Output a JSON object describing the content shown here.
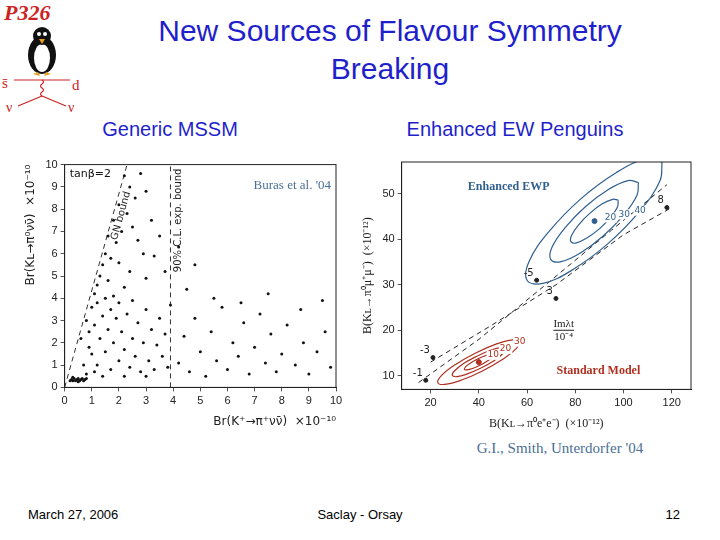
{
  "header": {
    "title": "New Sources of Flavour Symmetry Breaking"
  },
  "logo": {
    "title": "P326",
    "labels": [
      "s̄",
      "d",
      "ν",
      "ν"
    ]
  },
  "footer": {
    "date": "March 27, 2006",
    "venue": "Saclay - Orsay",
    "page": 12
  },
  "chart_data": [
    {
      "type": "scatter",
      "title": "Generic MSSM",
      "x_label": "Br(K⁺→π⁺νν̄)  ×10⁻¹⁰",
      "y_label": "Br(Kʟ→π⁰νν̄)  ×10⁻¹⁰",
      "xlim": [
        0,
        10
      ],
      "xticks": [
        0,
        1,
        2,
        3,
        4,
        5,
        6,
        7,
        8,
        9,
        10
      ],
      "ylim": [
        0,
        10
      ],
      "yticks": [
        0,
        1,
        2,
        3,
        4,
        5,
        6,
        7,
        8,
        9,
        10
      ],
      "grid": false,
      "color": "#111111",
      "marker": "circle",
      "annotations": [
        "tanβ=2"
      ],
      "source": "Buras et al. '04",
      "bounds": [
        {
          "name": "GN bound",
          "x": [
            0,
            2.3
          ],
          "y": [
            0,
            10
          ],
          "line_style": "dashed"
        },
        {
          "name": "90% C.L. exp. bound",
          "x": [
            3.9,
            3.9
          ],
          "y": [
            0,
            10
          ],
          "line_style": "dashed"
        }
      ],
      "x": [
        0.2,
        0.25,
        0.3,
        0.35,
        0.4,
        0.45,
        0.5,
        0.55,
        0.6,
        0.65,
        0.7,
        0.75,
        0.3,
        0.5,
        0.8,
        2.2,
        2.0,
        1.8,
        2.4,
        2.6,
        1.6,
        2.3,
        2.8,
        1.9,
        1.5,
        2.1,
        3.0,
        2.5,
        1.4,
        1.7,
        3.2,
        2.7,
        1.3,
        2.0,
        3.5,
        2.9,
        1.2,
        1.6,
        2.4,
        3.3,
        4.2,
        1.1,
        2.2,
        1.8,
        3.0,
        3.7,
        4.8,
        0.6,
        0.8,
        0.9,
        1.0,
        1.0,
        1.1,
        1.2,
        1.2,
        1.3,
        1.4,
        1.5,
        1.5,
        1.6,
        1.7,
        1.7,
        1.8,
        1.9,
        2.0,
        2.0,
        2.1,
        2.2,
        2.3,
        2.4,
        2.5,
        2.5,
        2.6,
        2.7,
        2.8,
        2.9,
        3.0,
        3.1,
        3.2,
        3.3,
        3.4,
        3.5,
        3.6,
        3.7,
        3.8,
        3.9,
        0.7,
        0.9,
        1.1,
        1.4,
        2.2,
        3.0,
        0.8,
        4.2,
        4.4,
        4.6,
        4.8,
        5.0,
        5.2,
        5.4,
        5.6,
        5.8,
        6.0,
        6.2,
        6.4,
        6.6,
        6.8,
        7.0,
        7.2,
        7.4,
        7.6,
        7.8,
        8.0,
        8.2,
        8.5,
        8.8,
        9.0,
        9.3,
        9.6,
        9.8,
        4.5,
        5.5,
        6.5,
        7.5,
        8.7,
        9.5
      ],
      "values": [
        0.3,
        0.35,
        0.3,
        0.4,
        0.3,
        0.35,
        0.4,
        0.3,
        0.35,
        0.4,
        0.3,
        0.35,
        0.45,
        0.25,
        0.4,
        9.5,
        8.2,
        7.5,
        9.0,
        8.5,
        6.8,
        7.8,
        9.6,
        6.5,
        6.0,
        7.0,
        8.8,
        7.2,
        5.5,
        5.8,
        7.5,
        6.6,
        5.0,
        5.6,
        6.8,
        6.0,
        4.6,
        4.8,
        5.2,
        5.9,
        6.3,
        4.2,
        4.5,
        4.1,
        4.9,
        5.2,
        5.5,
        2.2,
        3.0,
        2.5,
        3.6,
        1.5,
        2.8,
        3.8,
        1.0,
        2.2,
        3.2,
        1.6,
        4.0,
        2.6,
        3.5,
        0.8,
        2.0,
        3.1,
        1.2,
        3.8,
        2.5,
        1.7,
        3.3,
        0.9,
        2.2,
        3.9,
        1.4,
        2.9,
        0.7,
        2.0,
        3.5,
        1.2,
        2.6,
        0.8,
        1.9,
        3.1,
        1.4,
        2.4,
        0.9,
        3.7,
        1.0,
        1.8,
        0.7,
        0.5,
        0.5,
        0.5,
        0.6,
        1.1,
        2.3,
        0.7,
        3.1,
        1.6,
        0.5,
        2.5,
        1.2,
        3.6,
        0.8,
        2.0,
        1.4,
        2.9,
        0.6,
        1.8,
        3.3,
        1.1,
        2.4,
        0.7,
        1.5,
        2.8,
        1.0,
        2.0,
        0.6,
        1.6,
        2.5,
        0.9,
        4.4,
        4.0,
        3.8,
        4.2,
        3.5,
        3.9
      ]
    },
    {
      "type": "contour",
      "title": "Enhanced EW Penguins",
      "x_label": "B(Kʟ→π⁰e⁺e⁻)  (×10⁻¹²)",
      "y_label": "B(Kʟ→π⁰μ⁺μ⁻)  (×10⁻¹²)",
      "xlim": [
        8,
        128
      ],
      "xticks": [
        20,
        40,
        60,
        80,
        100,
        120
      ],
      "ylim": [
        7,
        57
      ],
      "yticks": [
        10,
        20,
        30,
        40,
        50
      ],
      "grid": false,
      "contours": [
        {
          "name": "Enhanced EWP",
          "color": "#2f5f8f",
          "center": {
            "x": 88,
            "y": 44
          },
          "levels": [
            {
              "label": "20",
              "label_x": 94.6,
              "label_y": 44.8,
              "x": [
                97.8,
                95.5,
                91.2,
                86.0,
                81.4,
                78.5,
                78.2,
                80.5,
                84.8,
                90.0,
                94.6,
                97.5
              ],
              "y": [
                48.6,
                48.8,
                47.8,
                45.7,
                43.2,
                40.9,
                39.5,
                39.2,
                40.3,
                42.3,
                44.8,
                47.1
              ]
            },
            {
              "label": "30",
              "label_x": 100.3,
              "label_y": 45.5,
              "x": [
                106.2,
                101.9,
                93.9,
                84.3,
                75.7,
                70.4,
                69.8,
                74.1,
                82.1,
                91.7,
                100.3,
                105.6
              ],
              "y": [
                52.5,
                52.9,
                51.0,
                47.2,
                42.5,
                38.3,
                35.6,
                35.1,
                37.0,
                40.8,
                45.5,
                49.7
              ]
            },
            {
              "label": "40",
              "label_x": 106.9,
              "label_y": 46.3,
              "x": [
                116,
                109.4,
                97.1,
                82.3,
                69.1,
                60.9,
                60,
                66.6,
                78.9,
                93.7,
                106.9,
                115.1
              ],
              "y": [
                57,
                57.7,
                54.7,
                48.9,
                41.7,
                35.2,
                31,
                30.3,
                33.3,
                39.1,
                46.3,
                52.8
              ]
            }
          ]
        },
        {
          "name": "Standard Model",
          "color": "#b03020",
          "center": {
            "x": 40,
            "y": 13
          },
          "levels": [
            {
              "label": "10",
              "label_x": 46.0,
              "label_y": 14.6,
              "x": [
                46.0,
                44.9,
                42.6,
                39.5,
                36.6,
                34.6,
                34.0,
                35.1,
                37.4,
                40.5,
                43.4,
                45.4
              ],
              "y": [
                14.6,
                14.7,
                14.4,
                13.7,
                12.8,
                12.0,
                11.4,
                11.3,
                11.6,
                12.3,
                13.2,
                14.0
              ]
            },
            {
              "label": "20",
              "label_x": 51.1,
              "label_y": 15.9,
              "x": [
                51.1,
                49.1,
                44.8,
                39.2,
                33.7,
                30.0,
                29.0,
                30.9,
                35.2,
                40.9,
                46.3,
                50.0
              ],
              "y": [
                15.9,
                16.2,
                15.6,
                14.3,
                12.7,
                11.1,
                10.1,
                9.8,
                10.4,
                11.7,
                13.3,
                14.9
              ]
            },
            {
              "label": "30",
              "label_x": 57,
              "label_y": 17.5,
              "x": [
                57,
                54.1,
                47.4,
                38.7,
                30.4,
                24.6,
                23,
                25.9,
                32.6,
                41.3,
                49.6,
                55.4
              ],
              "y": [
                17.5,
                17.9,
                17.0,
                15.0,
                12.5,
                10.1,
                8.5,
                8.1,
                9.0,
                11.0,
                13.5,
                15.9
              ]
            }
          ]
        }
      ],
      "lines": [
        {
          "x": [
            15,
            40,
            70,
            95,
            118
          ],
          "y": [
            8.5,
            18,
            31,
            42,
            52
          ],
          "line_style": "dashed",
          "color": "#222222"
        },
        {
          "x": [
            20,
            45,
            72,
            100,
            120
          ],
          "y": [
            13,
            21,
            30,
            41,
            47
          ],
          "line_style": "dashed",
          "color": "#222222"
        }
      ],
      "points": {
        "x": [
          18,
          21,
          64,
          72,
          118
        ],
        "values": [
          9,
          14,
          31,
          27,
          47
        ],
        "labels": [
          "-1",
          "-3",
          "-5",
          "3",
          "8"
        ]
      },
      "param_label": {
        "numerator": "Imλt",
        "denominator": "10⁻⁴"
      },
      "source": "G.I., Smith, Unterdorfer '04"
    }
  ]
}
